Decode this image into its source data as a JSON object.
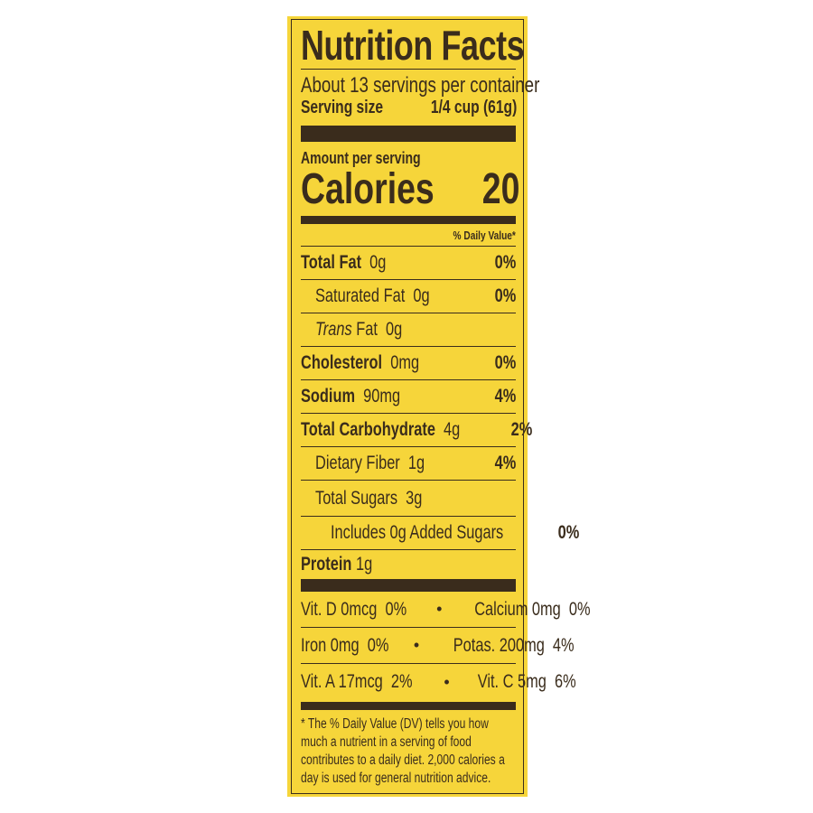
{
  "colors": {
    "background": "#f6d53a",
    "ink": "#3a2c1c"
  },
  "title": "Nutrition Facts",
  "servings_per_container": "About 13 servings per container",
  "serving_size": {
    "label": "Serving size",
    "value": "1/4 cup (61g)"
  },
  "amount_per_serving": "Amount per serving",
  "calories": {
    "label": "Calories",
    "value": "20"
  },
  "daily_value_header": "% Daily Value*",
  "nutrients": [
    {
      "name": "Total Fat",
      "amount": "0g",
      "dv": "0%"
    },
    {
      "name": "Saturated Fat",
      "amount": "0g",
      "dv": "0%"
    },
    {
      "name_italic": "Trans",
      "name": "Fat",
      "amount": "0g",
      "dv": ""
    },
    {
      "name": "Cholesterol",
      "amount": "0mg",
      "dv": "0%"
    },
    {
      "name": "Sodium",
      "amount": "90mg",
      "dv": "4%"
    },
    {
      "name": "Total Carbohydrate",
      "amount": "4g",
      "dv": "2%"
    },
    {
      "name": "Dietary Fiber",
      "amount": "1g",
      "dv": "4%"
    },
    {
      "name": "Total Sugars",
      "amount": "3g",
      "dv": ""
    },
    {
      "name": "Includes 0g Added Sugars",
      "amount": "",
      "dv": "0%"
    },
    {
      "name": "Protein",
      "amount": "1g",
      "dv": ""
    }
  ],
  "vitamins": [
    {
      "left": "Vit. D 0mcg  0%",
      "right": "Calcium 0mg  0%"
    },
    {
      "left": "Iron 0mg  0%",
      "right": "Potas. 200mg  4%"
    },
    {
      "left": "Vit. A 17mcg  2%",
      "right": "Vit. C 5mg  6%"
    }
  ],
  "bullet": "•",
  "footnote": "* The % Daily Value (DV) tells you how much a nutrient in a serving of food contributes to a daily diet. 2,000 calories a day is used for general nutrition advice."
}
